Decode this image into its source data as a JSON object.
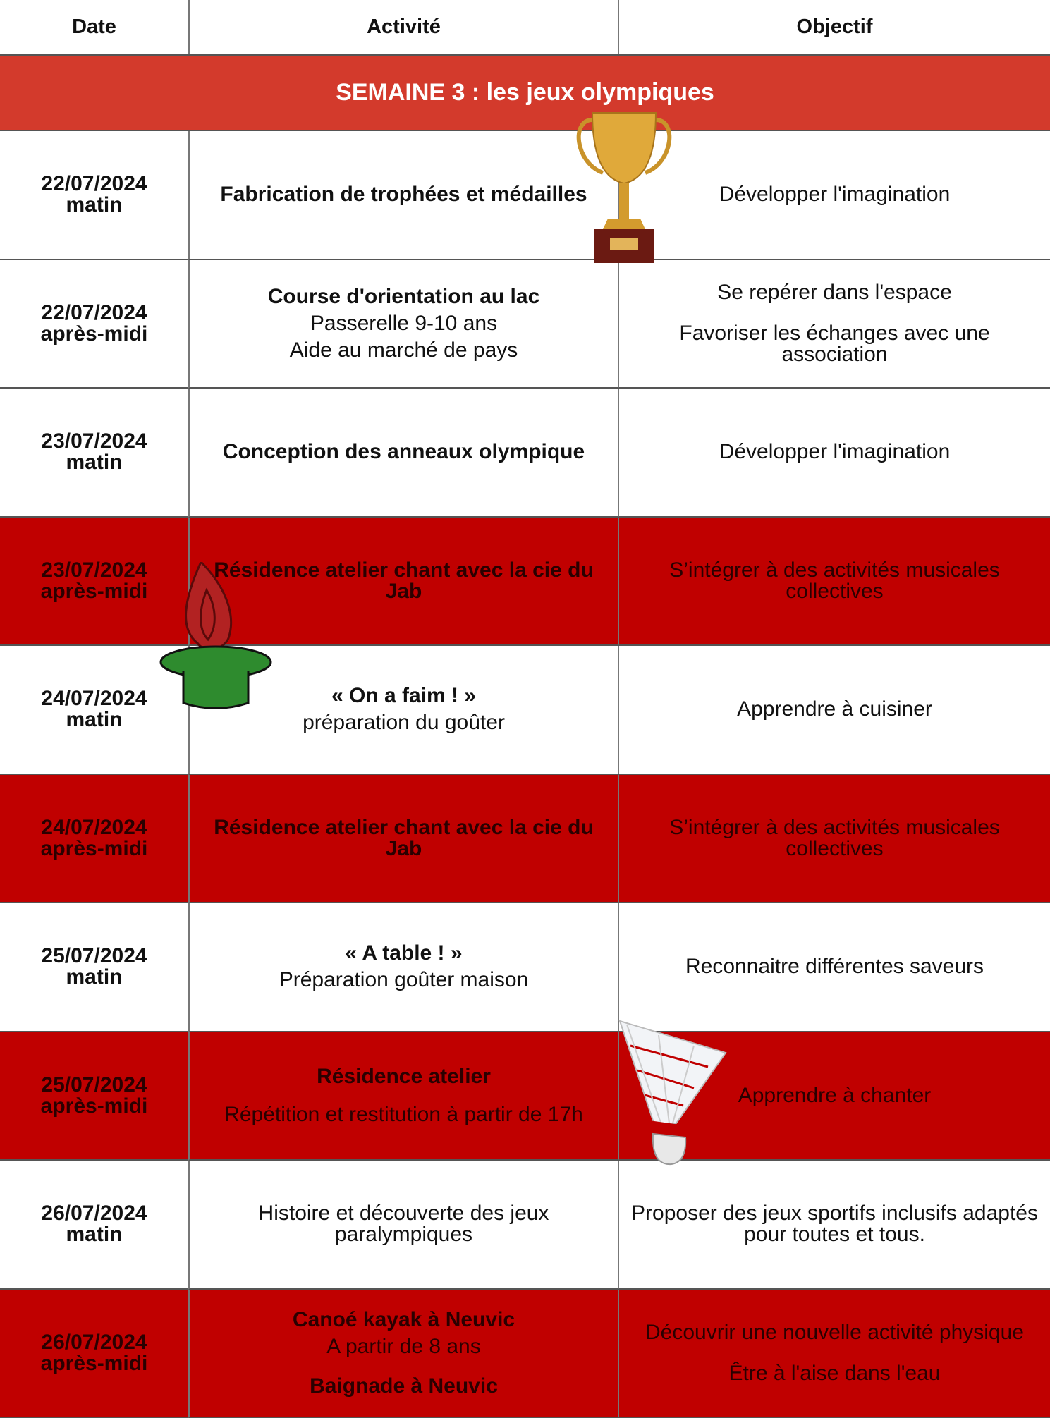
{
  "header": {
    "columns": [
      "Date",
      "Activité",
      "Objectif"
    ]
  },
  "banner": {
    "title": "SEMAINE 3 : les jeux olympiques"
  },
  "rows": [
    {
      "date": "22/07/2024",
      "period": "matin",
      "highlight": false,
      "activity": [
        {
          "text": "Fabrication de trophées et médailles",
          "bold": true
        }
      ],
      "objectives": [
        "Développer l'imagination"
      ]
    },
    {
      "date": "22/07/2024",
      "period": "après-midi",
      "highlight": false,
      "activity": [
        {
          "text": "Course d'orientation au lac",
          "bold": true
        },
        {
          "text": "Passerelle 9-10 ans",
          "bold": false
        },
        {
          "text": "Aide au marché de pays",
          "bold": false
        }
      ],
      "objectives": [
        "Se repérer dans l'espace",
        "Favoriser les échanges avec une association"
      ]
    },
    {
      "date": "23/07/2024",
      "period": "matin",
      "highlight": false,
      "activity": [
        {
          "text": "Conception des anneaux olympique",
          "bold": true
        }
      ],
      "objectives": [
        "Développer l'imagination"
      ]
    },
    {
      "date": "23/07/2024",
      "period": "après-midi",
      "highlight": true,
      "activity": [
        {
          "text": "Résidence atelier chant avec la cie du Jab",
          "bold": true
        }
      ],
      "objectives": [
        "S’intégrer à des activités musicales collectives"
      ]
    },
    {
      "date": "24/07/2024",
      "period": "matin",
      "highlight": false,
      "activity": [
        {
          "text": "« On a faim ! »",
          "bold": true
        },
        {
          "text": "préparation du goûter",
          "bold": false
        }
      ],
      "objectives": [
        "Apprendre à cuisiner"
      ]
    },
    {
      "date": "24/07/2024",
      "period": "après-midi",
      "highlight": true,
      "activity": [
        {
          "text": "Résidence atelier chant avec la cie du Jab",
          "bold": true
        }
      ],
      "objectives": [
        "S’intégrer à des activités musicales collectives"
      ]
    },
    {
      "date": "25/07/2024",
      "period": "matin",
      "highlight": false,
      "activity": [
        {
          "text": "« A table ! »",
          "bold": true
        },
        {
          "text": "Préparation goûter maison",
          "bold": false
        }
      ],
      "objectives": [
        "Reconnaitre différentes saveurs"
      ]
    },
    {
      "date": "25/07/2024",
      "period": "après-midi",
      "highlight": true,
      "activity": [
        {
          "text": "Résidence atelier",
          "bold": true
        },
        {
          "text": "Répétition et restitution à partir de 17h",
          "bold": false
        }
      ],
      "objectives": [
        "Apprendre à chanter"
      ]
    },
    {
      "date": "26/07/2024",
      "period": "matin",
      "highlight": false,
      "activity": [
        {
          "text": "Histoire et découverte des jeux paralympiques",
          "bold": false
        }
      ],
      "objectives": [
        "Proposer des jeux sportifs inclusifs adaptés pour toutes et tous."
      ]
    },
    {
      "date": "26/07/2024",
      "period": "après-midi",
      "highlight": true,
      "activity": [
        {
          "text": "Canoé kayak  à Neuvic",
          "bold": true
        },
        {
          "text": "A partir de 8 ans",
          "bold": false
        },
        {
          "text": "Baignade à Neuvic",
          "bold": true
        }
      ],
      "objectives": [
        "Découvrir une nouvelle activité physique",
        "Être à l'aise dans l'eau"
      ]
    }
  ]
}
